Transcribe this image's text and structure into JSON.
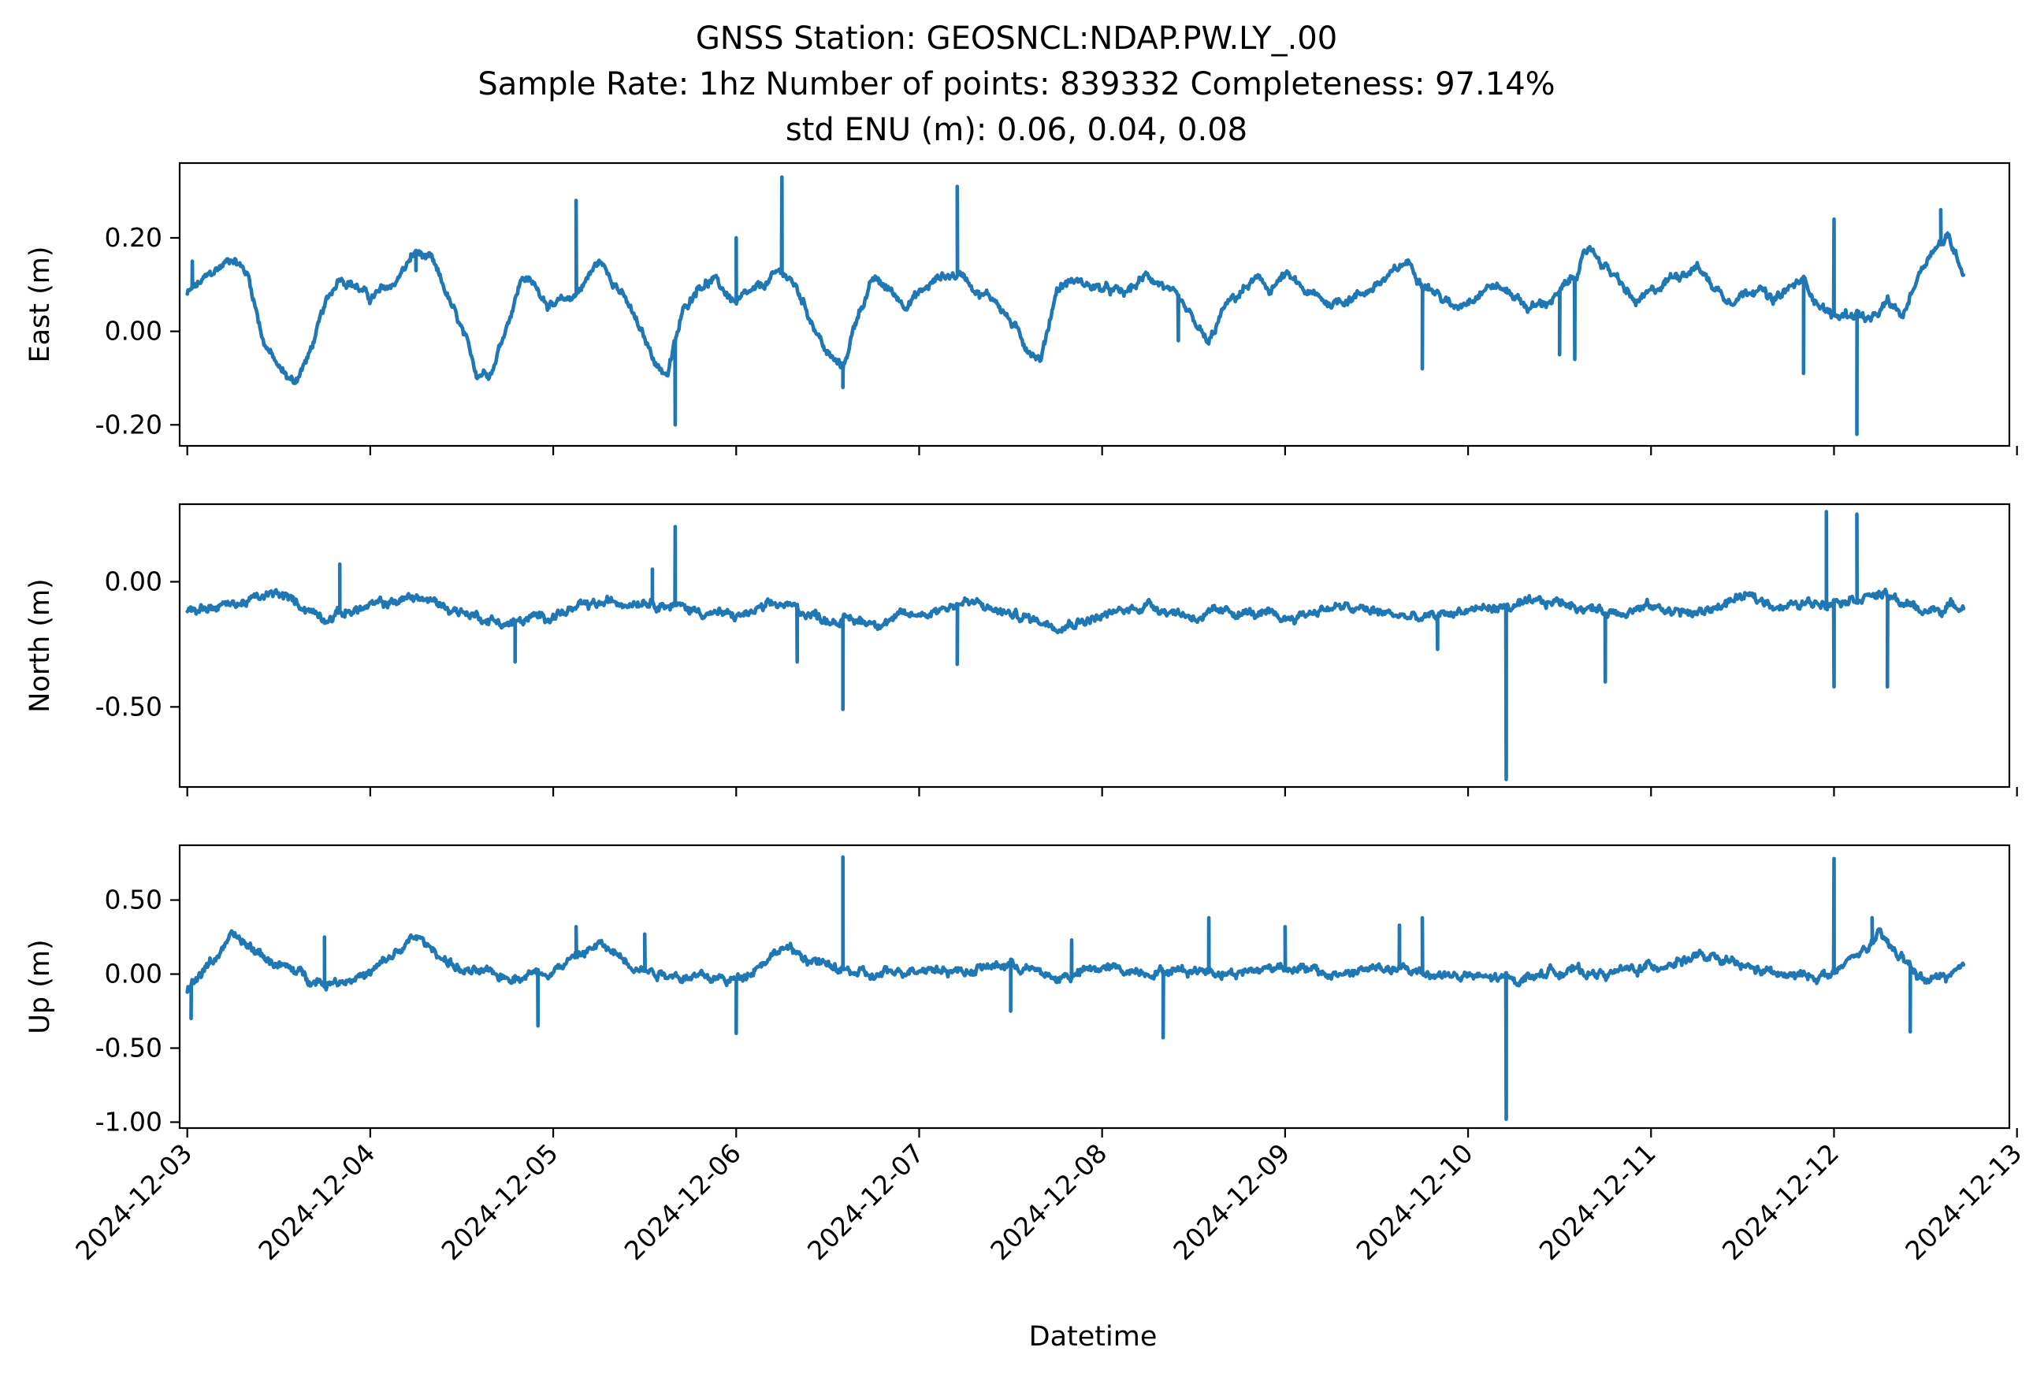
{
  "figure": {
    "title_line1": "GNSS Station: GEOSNCL:NDAP.PW.LY_.00",
    "title_line2": "Sample Rate: 1hz   Number of points: 839332    Completeness:  97.14%",
    "title_line3": "std ENU (m):  0.06, 0.04, 0.08",
    "line_color": "#1f77b4"
  },
  "chart_data": [
    {
      "type": "line",
      "ylabel": "East (m)",
      "xlabel": "",
      "xlim": [
        "2024-12-02T23:00",
        "2024-12-12T23:00"
      ],
      "ylim": [
        -0.245,
        0.36
      ],
      "yticks": [
        0.2,
        0.0,
        -0.2
      ],
      "ytick_labels": [
        "0.20",
        "0.00",
        "-0.20"
      ],
      "grid": false,
      "series": [
        {
          "x": [
            "2024-12-03T00:00",
            "2024-12-03T03:00",
            "2024-12-03T06:00",
            "2024-12-03T08:00",
            "2024-12-03T10:00",
            "2024-12-03T12:00",
            "2024-12-03T14:00",
            "2024-12-03T16:00",
            "2024-12-03T18:00",
            "2024-12-03T20:00",
            "2024-12-03T22:00",
            "2024-12-04T00:00",
            "2024-12-04T03:00",
            "2024-12-04T06:00",
            "2024-12-04T08:00",
            "2024-12-04T10:00",
            "2024-12-04T12:00",
            "2024-12-04T14:00",
            "2024-12-04T16:00",
            "2024-12-04T18:00",
            "2024-12-04T20:00",
            "2024-12-04T22:00",
            "2024-12-05T00:00",
            "2024-12-05T03:00",
            "2024-12-05T06:00",
            "2024-12-05T08:00",
            "2024-12-05T10:00",
            "2024-12-05T12:00",
            "2024-12-05T14:00",
            "2024-12-05T15:00",
            "2024-12-05T17:00",
            "2024-12-05T19:00",
            "2024-12-05T21:00",
            "2024-12-06T00:00",
            "2024-12-06T03:00",
            "2024-12-06T06:00",
            "2024-12-06T08:00",
            "2024-12-06T10:00",
            "2024-12-06T12:00",
            "2024-12-06T14:00",
            "2024-12-06T16:00",
            "2024-12-06T18:00",
            "2024-12-06T20:00",
            "2024-12-06T22:00",
            "2024-12-07T00:00",
            "2024-12-07T03:00",
            "2024-12-07T06:00",
            "2024-12-07T08:00",
            "2024-12-07T10:00",
            "2024-12-07T12:00",
            "2024-12-07T14:00",
            "2024-12-07T16:00",
            "2024-12-07T18:00",
            "2024-12-07T20:00",
            "2024-12-07T22:00",
            "2024-12-08T00:00",
            "2024-12-08T03:00",
            "2024-12-08T06:00",
            "2024-12-08T08:00",
            "2024-12-08T10:00",
            "2024-12-08T12:00",
            "2024-12-08T14:00",
            "2024-12-08T16:00",
            "2024-12-08T18:00",
            "2024-12-08T20:00",
            "2024-12-08T22:00",
            "2024-12-09T00:00",
            "2024-12-09T03:00",
            "2024-12-09T06:00",
            "2024-12-09T08:00",
            "2024-12-09T10:00",
            "2024-12-09T12:00",
            "2024-12-09T14:00",
            "2024-12-09T16:00",
            "2024-12-09T18:00",
            "2024-12-09T20:00",
            "2024-12-09T22:00",
            "2024-12-10T00:00",
            "2024-12-10T03:00",
            "2024-12-10T06:00",
            "2024-12-10T08:00",
            "2024-12-10T10:00",
            "2024-12-10T12:00",
            "2024-12-10T14:00",
            "2024-12-10T16:00",
            "2024-12-10T18:00",
            "2024-12-10T20:00",
            "2024-12-10T22:00",
            "2024-12-11T00:00",
            "2024-12-11T03:00",
            "2024-12-11T06:00",
            "2024-12-11T08:00",
            "2024-12-11T10:00",
            "2024-12-11T12:00",
            "2024-12-11T14:00",
            "2024-12-11T16:00",
            "2024-12-11T18:00",
            "2024-12-11T20:00",
            "2024-12-11T22:00",
            "2024-12-12T00:00",
            "2024-12-12T03:00",
            "2024-12-12T05:00",
            "2024-12-12T07:00",
            "2024-12-12T09:00",
            "2024-12-12T11:00",
            "2024-12-12T13:00",
            "2024-12-12T15:00",
            "2024-12-12T17:00"
          ],
          "y": [
            0.08,
            0.12,
            0.16,
            0.12,
            -0.02,
            -0.08,
            -0.11,
            -0.05,
            0.05,
            0.12,
            0.1,
            0.07,
            0.1,
            0.17,
            0.15,
            0.08,
            0.0,
            -0.09,
            -0.08,
            0.02,
            0.12,
            0.09,
            0.05,
            0.08,
            0.15,
            0.11,
            0.05,
            -0.02,
            -0.08,
            -0.09,
            0.04,
            0.1,
            0.11,
            0.06,
            0.09,
            0.13,
            0.09,
            0.02,
            -0.05,
            -0.08,
            0.04,
            0.11,
            0.09,
            0.06,
            0.08,
            0.12,
            0.12,
            0.08,
            0.07,
            0.02,
            -0.03,
            -0.06,
            0.09,
            0.11,
            0.1,
            0.09,
            0.08,
            0.12,
            0.1,
            0.06,
            0.02,
            -0.03,
            0.05,
            0.08,
            0.11,
            0.09,
            0.12,
            0.08,
            0.06,
            0.07,
            0.08,
            0.1,
            0.12,
            0.15,
            0.11,
            0.08,
            0.05,
            0.07,
            0.1,
            0.08,
            0.05,
            0.06,
            0.08,
            0.12,
            0.18,
            0.14,
            0.1,
            0.06,
            0.08,
            0.12,
            0.14,
            0.1,
            0.07,
            0.08,
            0.1,
            0.06,
            0.09,
            0.11,
            0.06,
            0.03,
            0.04,
            0.02,
            0.06,
            0.03,
            0.12,
            0.18,
            0.2,
            0.13
          ],
          "spikes": [
            [
              "2024-12-03T00:40",
              0.15
            ],
            [
              "2024-12-04T06:00",
              0.13
            ],
            [
              "2024-12-05T03:00",
              0.28
            ],
            [
              "2024-12-05T16:00",
              -0.2
            ],
            [
              "2024-12-06T00:00",
              0.2
            ],
            [
              "2024-12-06T06:00",
              0.33
            ],
            [
              "2024-12-06T14:00",
              -0.12
            ],
            [
              "2024-12-07T05:00",
              0.31
            ],
            [
              "2024-12-08T10:00",
              -0.02
            ],
            [
              "2024-12-09T18:00",
              -0.08
            ],
            [
              "2024-12-10T12:00",
              -0.05
            ],
            [
              "2024-12-10T14:00",
              -0.06
            ],
            [
              "2024-12-11T20:00",
              -0.09
            ],
            [
              "2024-12-12T00:00",
              0.24
            ],
            [
              "2024-12-12T03:00",
              -0.22
            ],
            [
              "2024-12-12T14:00",
              0.26
            ]
          ]
        }
      ]
    },
    {
      "type": "line",
      "ylabel": "North (m)",
      "xlabel": "",
      "xlim": [
        "2024-12-02T23:00",
        "2024-12-12T23:00"
      ],
      "ylim": [
        -0.82,
        0.31
      ],
      "yticks": [
        0.0,
        -0.5
      ],
      "ytick_labels": [
        "0.00",
        "-0.50"
      ],
      "grid": false,
      "series": [
        {
          "x": [
            "2024-12-03T00:00",
            "2024-12-03T06:00",
            "2024-12-03T12:00",
            "2024-12-03T18:00",
            "2024-12-04T00:00",
            "2024-12-04T06:00",
            "2024-12-04T12:00",
            "2024-12-04T18:00",
            "2024-12-05T00:00",
            "2024-12-05T06:00",
            "2024-12-05T12:00",
            "2024-12-05T18:00",
            "2024-12-06T00:00",
            "2024-12-06T06:00",
            "2024-12-06T12:00",
            "2024-12-06T18:00",
            "2024-12-07T00:00",
            "2024-12-07T06:00",
            "2024-12-07T12:00",
            "2024-12-07T18:00",
            "2024-12-08T00:00",
            "2024-12-08T06:00",
            "2024-12-08T12:00",
            "2024-12-08T18:00",
            "2024-12-09T00:00",
            "2024-12-09T06:00",
            "2024-12-09T12:00",
            "2024-12-09T18:00",
            "2024-12-10T00:00",
            "2024-12-10T06:00",
            "2024-12-10T12:00",
            "2024-12-10T18:00",
            "2024-12-11T00:00",
            "2024-12-11T06:00",
            "2024-12-11T12:00",
            "2024-12-11T18:00",
            "2024-12-12T00:00",
            "2024-12-12T06:00",
            "2024-12-12T12:00",
            "2024-12-12T17:00"
          ],
          "y": [
            -0.11,
            -0.09,
            -0.05,
            -0.14,
            -0.1,
            -0.06,
            -0.12,
            -0.17,
            -0.13,
            -0.09,
            -0.07,
            -0.11,
            -0.14,
            -0.09,
            -0.15,
            -0.16,
            -0.13,
            -0.08,
            -0.13,
            -0.17,
            -0.14,
            -0.09,
            -0.14,
            -0.12,
            -0.15,
            -0.1,
            -0.12,
            -0.15,
            -0.11,
            -0.1,
            -0.08,
            -0.12,
            -0.1,
            -0.13,
            -0.06,
            -0.1,
            -0.07,
            -0.05,
            -0.12,
            -0.09
          ],
          "spikes": [
            [
              "2024-12-03T20:00",
              0.07
            ],
            [
              "2024-12-04T19:00",
              -0.32
            ],
            [
              "2024-12-05T13:00",
              0.05
            ],
            [
              "2024-12-05T16:00",
              0.22
            ],
            [
              "2024-12-06T08:00",
              -0.32
            ],
            [
              "2024-12-06T14:00",
              -0.51
            ],
            [
              "2024-12-07T05:00",
              -0.33
            ],
            [
              "2024-12-09T20:00",
              -0.27
            ],
            [
              "2024-12-10T05:00",
              -0.79
            ],
            [
              "2024-12-10T18:00",
              -0.4
            ],
            [
              "2024-12-11T23:00",
              0.28
            ],
            [
              "2024-12-12T00:00",
              -0.42
            ],
            [
              "2024-12-12T03:00",
              0.27
            ],
            [
              "2024-12-12T07:00",
              -0.42
            ]
          ]
        }
      ]
    },
    {
      "type": "line",
      "ylabel": "Up (m)",
      "xlabel": "Datetime",
      "xlim": [
        "2024-12-02T23:00",
        "2024-12-12T23:00"
      ],
      "ylim": [
        -1.04,
        0.87
      ],
      "yticks": [
        0.5,
        0.0,
        -0.5,
        -1.0
      ],
      "ytick_labels": [
        "0.50",
        "0.00",
        "-0.50",
        "-1.00"
      ],
      "xtick_labels": [
        "2024-12-03",
        "2024-12-04",
        "2024-12-05",
        "2024-12-06",
        "2024-12-07",
        "2024-12-08",
        "2024-12-09",
        "2024-12-10",
        "2024-12-11",
        "2024-12-12",
        "2024-12-13"
      ],
      "grid": false,
      "series": [
        {
          "x": [
            "2024-12-03T00:00",
            "2024-12-03T06:00",
            "2024-12-03T12:00",
            "2024-12-03T18:00",
            "2024-12-04T00:00",
            "2024-12-04T06:00",
            "2024-12-04T12:00",
            "2024-12-04T18:00",
            "2024-12-05T00:00",
            "2024-12-05T06:00",
            "2024-12-05T12:00",
            "2024-12-05T18:00",
            "2024-12-06T00:00",
            "2024-12-06T06:00",
            "2024-12-06T12:00",
            "2024-12-06T18:00",
            "2024-12-07T00:00",
            "2024-12-07T06:00",
            "2024-12-07T12:00",
            "2024-12-07T18:00",
            "2024-12-08T00:00",
            "2024-12-08T06:00",
            "2024-12-08T12:00",
            "2024-12-08T18:00",
            "2024-12-09T00:00",
            "2024-12-09T06:00",
            "2024-12-09T12:00",
            "2024-12-09T18:00",
            "2024-12-10T00:00",
            "2024-12-10T06:00",
            "2024-12-10T12:00",
            "2024-12-10T18:00",
            "2024-12-11T00:00",
            "2024-12-11T06:00",
            "2024-12-11T12:00",
            "2024-12-11T18:00",
            "2024-12-12T00:00",
            "2024-12-12T06:00",
            "2024-12-12T12:00",
            "2024-12-12T17:00"
          ],
          "y": [
            -0.1,
            0.25,
            0.06,
            -0.06,
            0.0,
            0.25,
            0.02,
            -0.02,
            0.03,
            0.2,
            0.03,
            -0.02,
            -0.04,
            0.18,
            0.05,
            -0.02,
            0.05,
            0.02,
            0.07,
            -0.03,
            0.04,
            0.02,
            0.03,
            0.01,
            0.06,
            -0.01,
            0.04,
            0.01,
            -0.02,
            -0.04,
            0.03,
            0.0,
            0.05,
            0.12,
            0.05,
            -0.02,
            0.0,
            0.25,
            -0.05,
            0.02
          ],
          "spikes": [
            [
              "2024-12-03T00:30",
              -0.3
            ],
            [
              "2024-12-03T18:00",
              0.25
            ],
            [
              "2024-12-04T22:00",
              -0.35
            ],
            [
              "2024-12-05T03:00",
              0.32
            ],
            [
              "2024-12-05T12:00",
              0.27
            ],
            [
              "2024-12-06T00:00",
              -0.4
            ],
            [
              "2024-12-06T14:00",
              0.79
            ],
            [
              "2024-12-07T12:00",
              -0.25
            ],
            [
              "2024-12-07T20:00",
              0.23
            ],
            [
              "2024-12-08T08:00",
              -0.43
            ],
            [
              "2024-12-08T14:00",
              0.38
            ],
            [
              "2024-12-09T00:00",
              0.32
            ],
            [
              "2024-12-09T15:00",
              0.33
            ],
            [
              "2024-12-09T18:00",
              0.38
            ],
            [
              "2024-12-10T05:00",
              -0.98
            ],
            [
              "2024-12-12T00:00",
              0.78
            ],
            [
              "2024-12-12T05:00",
              0.38
            ],
            [
              "2024-12-12T10:00",
              -0.39
            ]
          ]
        }
      ]
    }
  ]
}
